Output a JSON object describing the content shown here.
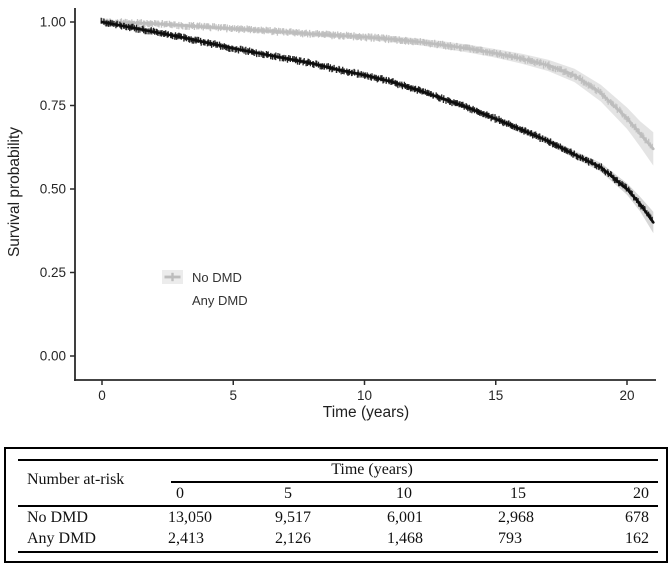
{
  "chart_data": {
    "type": "line",
    "chart_kind": "kaplan-meier-survival",
    "title": "",
    "xlabel": "Time (years)",
    "ylabel": "Survival probability",
    "xlim": [
      -1,
      21.3
    ],
    "ylim": [
      0,
      1.05
    ],
    "xticks": [
      0,
      5,
      10,
      15,
      20
    ],
    "xtick_labels": [
      "0",
      "5",
      "10",
      "15",
      "20"
    ],
    "yticks": [
      1.0,
      0.75,
      0.5,
      0.25,
      0.0
    ],
    "ytick_labels": [
      "1.00",
      "0.75",
      "0.50",
      "0.25",
      "0.00"
    ],
    "grid": false,
    "legend_position": "inside lower-left",
    "axis_color": "#2a2a2a",
    "tick_label_color": "#262626",
    "series": [
      {
        "name": "No DMD",
        "color": "#0d0d0d",
        "ci_color": "#bdbdbd",
        "key_bg": "#b2b2b2",
        "points": [
          [
            0,
            1.0,
            0.997,
            1.0
          ],
          [
            1,
            0.985,
            0.981,
            0.989
          ],
          [
            2,
            0.97,
            0.966,
            0.974
          ],
          [
            3,
            0.955,
            0.951,
            0.959
          ],
          [
            4,
            0.938,
            0.934,
            0.942
          ],
          [
            5,
            0.921,
            0.917,
            0.925
          ],
          [
            6,
            0.906,
            0.902,
            0.91
          ],
          [
            7,
            0.891,
            0.887,
            0.895
          ],
          [
            8,
            0.876,
            0.871,
            0.881
          ],
          [
            9,
            0.857,
            0.852,
            0.862
          ],
          [
            10,
            0.841,
            0.836,
            0.846
          ],
          [
            11,
            0.822,
            0.816,
            0.828
          ],
          [
            12,
            0.797,
            0.791,
            0.803
          ],
          [
            13,
            0.77,
            0.764,
            0.776
          ],
          [
            14,
            0.742,
            0.735,
            0.749
          ],
          [
            15,
            0.71,
            0.702,
            0.718
          ],
          [
            16,
            0.677,
            0.668,
            0.686
          ],
          [
            17,
            0.643,
            0.633,
            0.653
          ],
          [
            18,
            0.603,
            0.592,
            0.614
          ],
          [
            19,
            0.565,
            0.552,
            0.578
          ],
          [
            20,
            0.5,
            0.483,
            0.517
          ],
          [
            20.5,
            0.455,
            0.433,
            0.477
          ],
          [
            21,
            0.4,
            0.368,
            0.432
          ]
        ]
      },
      {
        "name": "Any DMD",
        "color": "#bdbdbd",
        "ci_color": "#e3e3e3",
        "key_bg": "#ececec",
        "points": [
          [
            0,
            1.0,
            0.996,
            1.0
          ],
          [
            1,
            0.998,
            0.994,
            1.0
          ],
          [
            2,
            0.995,
            0.99,
            1.0
          ],
          [
            3,
            0.99,
            0.985,
            0.995
          ],
          [
            4,
            0.985,
            0.979,
            0.991
          ],
          [
            5,
            0.98,
            0.974,
            0.986
          ],
          [
            6,
            0.975,
            0.968,
            0.982
          ],
          [
            7,
            0.97,
            0.963,
            0.977
          ],
          [
            8,
            0.964,
            0.957,
            0.971
          ],
          [
            9,
            0.96,
            0.952,
            0.968
          ],
          [
            10,
            0.955,
            0.947,
            0.963
          ],
          [
            11,
            0.949,
            0.94,
            0.958
          ],
          [
            12,
            0.941,
            0.931,
            0.951
          ],
          [
            13,
            0.931,
            0.92,
            0.942
          ],
          [
            14,
            0.92,
            0.908,
            0.932
          ],
          [
            15,
            0.906,
            0.893,
            0.919
          ],
          [
            16,
            0.89,
            0.875,
            0.905
          ],
          [
            17,
            0.87,
            0.853,
            0.887
          ],
          [
            18,
            0.84,
            0.82,
            0.86
          ],
          [
            19,
            0.787,
            0.762,
            0.812
          ],
          [
            20,
            0.712,
            0.68,
            0.744
          ],
          [
            20.5,
            0.665,
            0.627,
            0.703
          ],
          [
            21,
            0.62,
            0.57,
            0.67
          ]
        ]
      }
    ]
  },
  "risk_table": {
    "corner_label": "Number at-risk",
    "group_header": "Time (years)",
    "columns": [
      "0",
      "5",
      "10",
      "15",
      "20"
    ],
    "rows": [
      {
        "label": "No DMD",
        "values": [
          "13,050",
          "9,517",
          "6,001",
          "2,968",
          "678"
        ]
      },
      {
        "label": "Any DMD",
        "values": [
          "2,413",
          "2,126",
          "1,468",
          "793",
          "162"
        ]
      }
    ]
  }
}
